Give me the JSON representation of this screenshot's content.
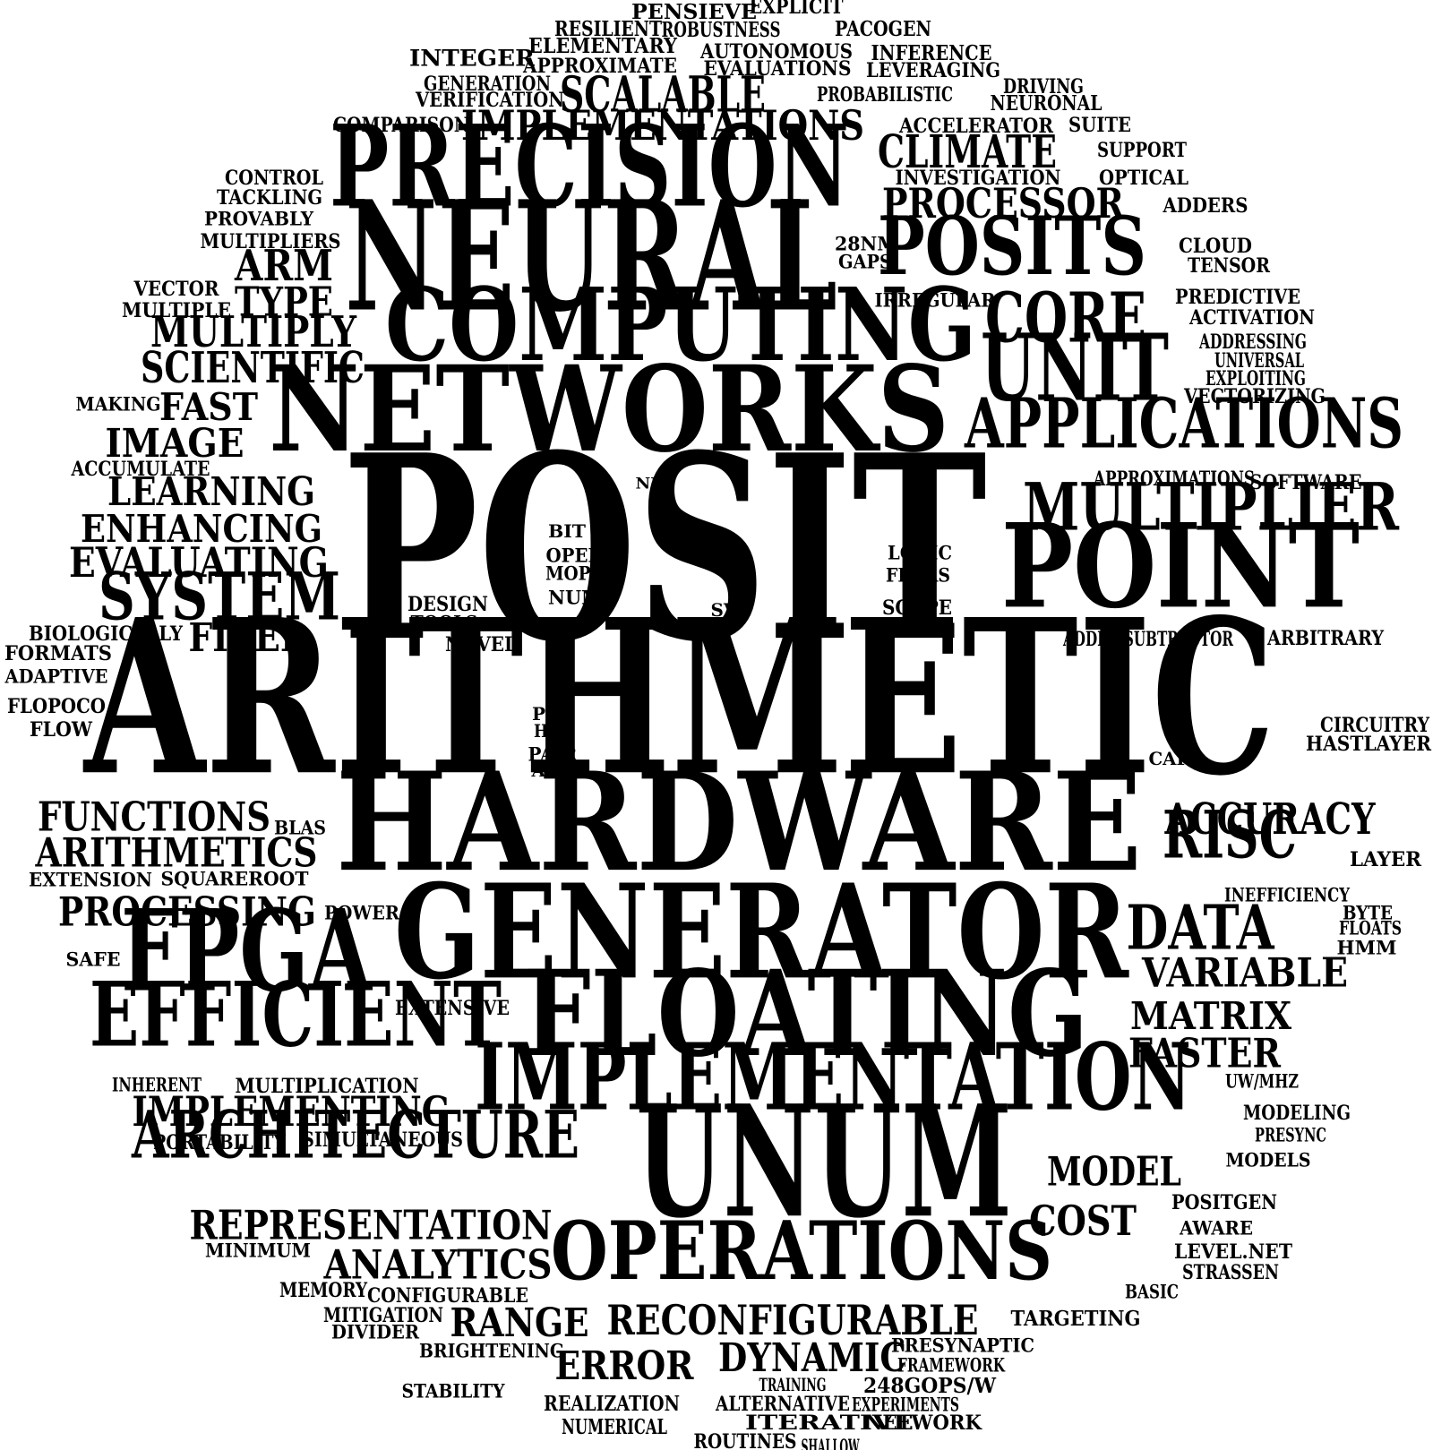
{
  "cloud": {
    "words": [
      "POSIT",
      "ARITHMETIC",
      "HARDWARE",
      "NEURAL",
      "PRECISION",
      "NETWORKS",
      "COMPUTING",
      "GENERATOR",
      "FLOATING",
      "UNUM",
      "IMPLEMENTATION",
      "POINT",
      "POSITS",
      "UNIT",
      "FPGA",
      "EFFICIENT",
      "OPERATIONS",
      "APPLICATIONS",
      "MULTIPLIER",
      "SYSTEM",
      "ARCHITECTURE",
      "CORE",
      "RISC",
      "DATA",
      "SCALABLE",
      "IMPLEMENTATIONS",
      "CLIMATE",
      "PROCESSOR",
      "ARM",
      "TYPE",
      "MULTIPLY",
      "SCIENTIFIC",
      "FAST",
      "IMAGE",
      "LEARNING",
      "ENHANCING",
      "EVALUATING",
      "FIXED",
      "FUNCTIONS",
      "ARITHMETICS",
      "PROCESSING",
      "ACCURACY",
      "VARIABLE",
      "MATRIX",
      "FASTER",
      "MODEL",
      "COST",
      "IMPLEMENTING",
      "REPRESENTATION",
      "ANALYTICS",
      "RANGE",
      "RECONFIGURABLE",
      "ERROR",
      "DYNAMIC",
      "PENSIEVE",
      "EXPLICIT",
      "RESILIENT",
      "ROBUSTNESS",
      "PACOGEN",
      "ELEMENTARY",
      "INTEGER",
      "AUTONOMOUS",
      "INFERENCE",
      "APPROXIMATE",
      "EVALUATIONS",
      "LEVERAGING",
      "GENERATION",
      "VERIFICATION",
      "PROBABILISTIC",
      "DRIVING",
      "NEURONAL",
      "COMPARISON",
      "ACCELERATOR",
      "SUITE",
      "SUPPORT",
      "CONTROL",
      "INVESTIGATION",
      "OPTICAL",
      "TACKLING",
      "PROVABLY",
      "ADDERS",
      "MULTIPLIERS",
      "28NM",
      "GAPS",
      "CLOUD",
      "TENSOR",
      "VECTOR",
      "MULTIPLE",
      "IRREGULAR",
      "PREDICTIVE",
      "ACTIVATION",
      "ADDRESSING",
      "UNIVERSAL",
      "EXPLOITING",
      "VECTORIZING",
      "MAKING",
      "ACCUMULATE",
      "NM",
      "APPROXIMATIONS",
      "SOFTWARE",
      "BIT",
      "OPEN",
      "MOPS",
      "NUM",
      "LOGIC",
      "FPGAS",
      "DESIGN",
      "TOOLS",
      "SVE",
      "SCOPE",
      "PERI",
      "NOVEL",
      "BIOLOGICALLY",
      "FORMATS",
      "ADAPTIVE",
      "ADDER/SUBTRACTOR",
      "ARBITRARY",
      "FLOPOCO",
      "FLOW",
      "PIU",
      "HLS",
      "PAIR",
      "ALU",
      "CIRCUITRY",
      "HASTLAYER",
      "CAPI",
      "BLAS",
      "EXTENSION",
      "SQUAREROOT",
      "LAYER",
      "INEFFICIENCY",
      "BYTE",
      "FLOATS",
      "HMM",
      "POWER",
      "SAFE",
      "EXTENSIVE",
      "INHERENT",
      "MULTIPLICATION",
      "UW/MHZ",
      "MODELING",
      "PRESYNC",
      "PORTABILITY",
      "SIMULTANEOUS",
      "MODELS",
      "POSITGEN",
      "AWARE",
      "MINIMUM",
      "LEVEL.NET",
      "STRASSEN",
      "MEMORY",
      "CONFIGURABLE",
      "BASIC",
      "MITIGATION",
      "DIVIDER",
      "TARGETING",
      "BRIGHTENING",
      "PRESYNAPTIC",
      "FRAMEWORK",
      "STABILITY",
      "TRAINING",
      "248GOPS/W",
      "REALIZATION",
      "ALTERNATIVE",
      "EXPERIMENTS",
      "ITERATIVE",
      "NETWORK",
      "NUMERICAL",
      "ROUTINES",
      "SHALLOW",
      "HIGH"
    ]
  }
}
